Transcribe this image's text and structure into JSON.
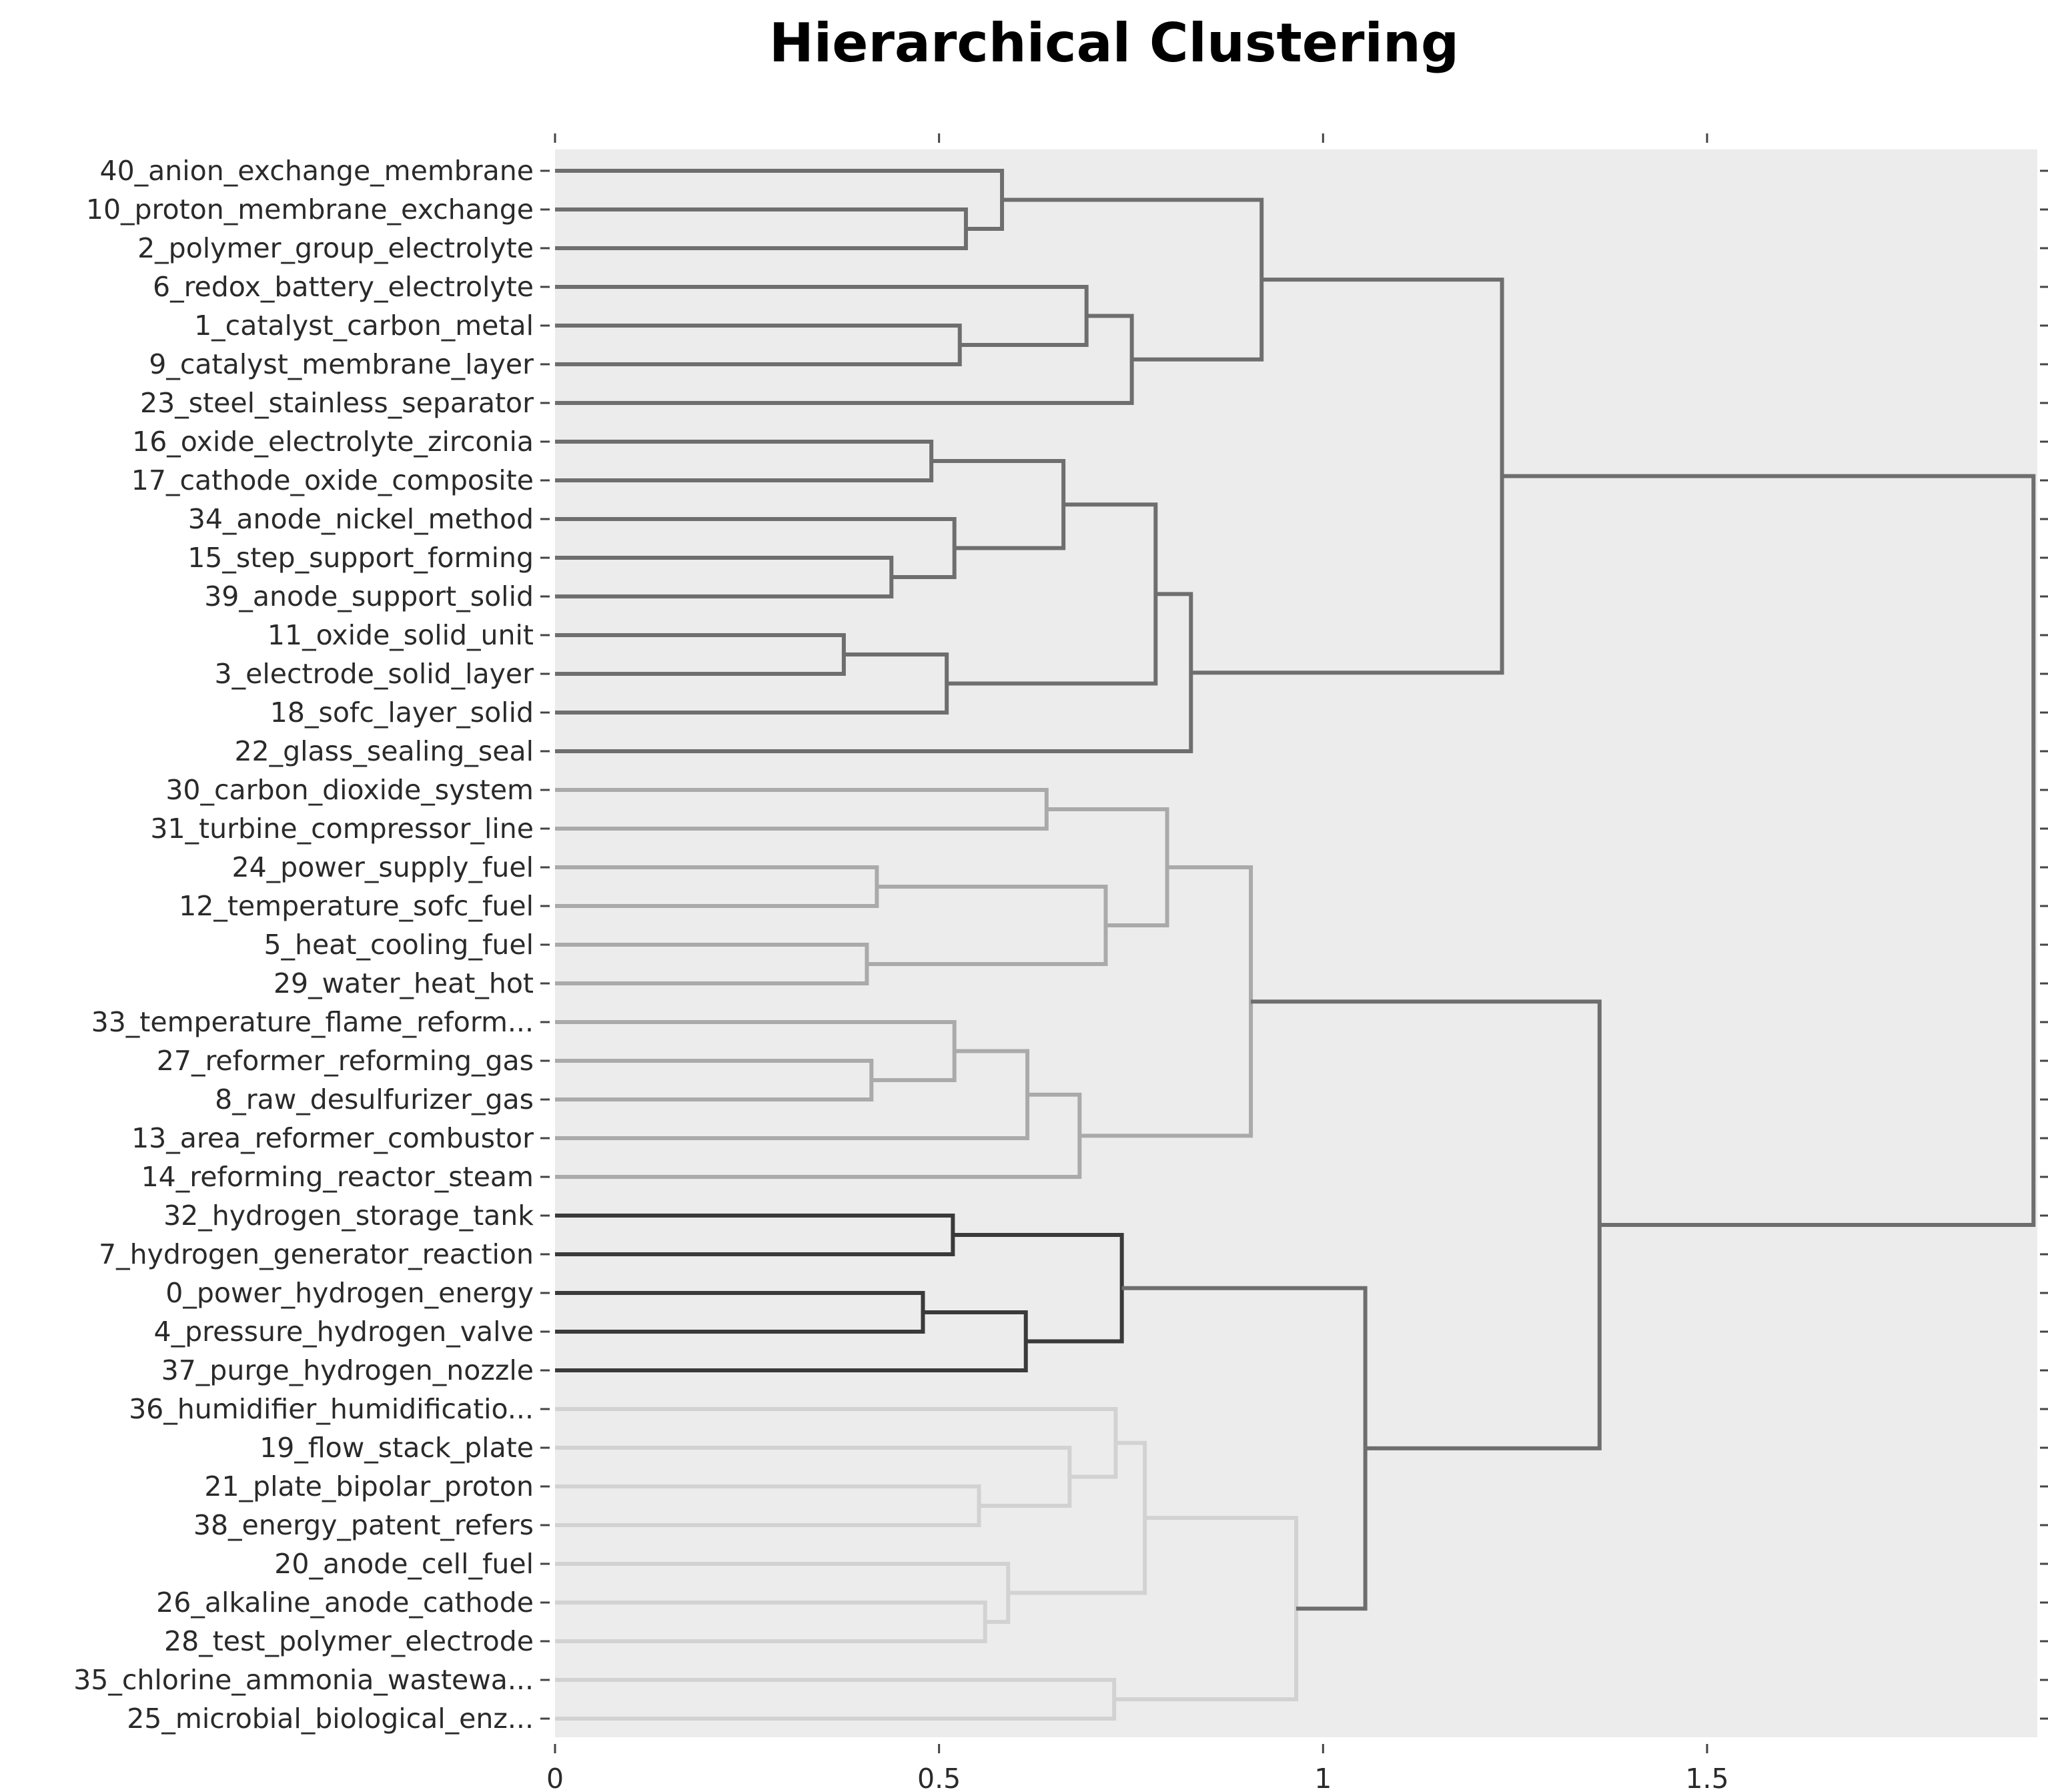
{
  "chart_data": {
    "type": "dendrogram",
    "title": "Hierarchical Clustering",
    "xlabel": "",
    "ylabel": "",
    "xlim": [
      0,
      1.93
    ],
    "x_ticks": [
      {
        "value": 0,
        "label": "0"
      },
      {
        "value": 0.5,
        "label": "0.5"
      },
      {
        "value": 1,
        "label": "1"
      },
      {
        "value": 1.5,
        "label": "1.5"
      }
    ],
    "grid": false,
    "orientation": "horizontal",
    "leaves": [
      "40_anion_exchange_membrane",
      "10_proton_membrane_exchange",
      "2_polymer_group_electrolyte",
      "6_redox_battery_electrolyte",
      "1_catalyst_carbon_metal",
      "9_catalyst_membrane_layer",
      "23_steel_stainless_separator",
      "16_oxide_electrolyte_zirconia",
      "17_cathode_oxide_composite",
      "34_anode_nickel_method",
      "15_step_support_forming",
      "39_anode_support_solid",
      "11_oxide_solid_unit",
      "3_electrode_solid_layer",
      "18_sofc_layer_solid",
      "22_glass_sealing_seal",
      "30_carbon_dioxide_system",
      "31_turbine_compressor_line",
      "24_power_supply_fuel",
      "12_temperature_sofc_fuel",
      "5_heat_cooling_fuel",
      "29_water_heat_hot",
      "33_temperature_flame_reform...",
      "27_reformer_reforming_gas",
      "8_raw_desulfurizer_gas",
      "13_area_reformer_combustor",
      "14_reforming_reactor_steam",
      "32_hydrogen_storage_tank",
      "7_hydrogen_generator_reaction",
      "0_power_hydrogen_energy",
      "4_pressure_hydrogen_valve",
      "37_purge_hydrogen_nozzle",
      "36_humidifier_humidificatio...",
      "19_flow_stack_plate",
      "21_plate_bipolar_proton",
      "38_energy_patent_refers",
      "20_anode_cell_fuel",
      "26_alkaline_anode_cathode",
      "28_test_polymer_electrode",
      "35_chlorine_ammonia_wastewa...",
      "25_microbial_biological_enz..."
    ],
    "colors": {
      "cluster_a": "#6e6e6e",
      "cluster_b": "#aaaaaa",
      "cluster_c": "#3a3a3a",
      "cluster_d": "#d2d2d2",
      "root": "#6e6e6e",
      "plot_bg": "#ececec"
    },
    "merges": [
      {
        "id": "A1",
        "children": [
          1,
          2
        ],
        "height": 0.535,
        "color": "cluster_a"
      },
      {
        "id": "A2",
        "children": [
          0,
          "A1"
        ],
        "height": 0.582,
        "color": "cluster_a"
      },
      {
        "id": "A3",
        "children": [
          4,
          5
        ],
        "height": 0.527,
        "color": "cluster_a"
      },
      {
        "id": "A4",
        "children": [
          3,
          "A3"
        ],
        "height": 0.692,
        "color": "cluster_a"
      },
      {
        "id": "A5",
        "children": [
          "A4",
          6
        ],
        "height": 0.751,
        "color": "cluster_a"
      },
      {
        "id": "A6",
        "children": [
          "A2",
          "A5"
        ],
        "height": 0.92,
        "color": "cluster_a"
      },
      {
        "id": "A7",
        "children": [
          7,
          8
        ],
        "height": 0.49,
        "color": "cluster_a"
      },
      {
        "id": "A8",
        "children": [
          10,
          11
        ],
        "height": 0.438,
        "color": "cluster_a"
      },
      {
        "id": "A9",
        "children": [
          9,
          "A8"
        ],
        "height": 0.52,
        "color": "cluster_a"
      },
      {
        "id": "A10",
        "children": [
          "A7",
          "A9"
        ],
        "height": 0.662,
        "color": "cluster_a"
      },
      {
        "id": "A11",
        "children": [
          12,
          13
        ],
        "height": 0.376,
        "color": "cluster_a"
      },
      {
        "id": "A12",
        "children": [
          "A11",
          14
        ],
        "height": 0.51,
        "color": "cluster_a"
      },
      {
        "id": "A13",
        "children": [
          "A10",
          "A12"
        ],
        "height": 0.782,
        "color": "cluster_a"
      },
      {
        "id": "A14",
        "children": [
          "A13",
          15
        ],
        "height": 0.828,
        "color": "cluster_a"
      },
      {
        "id": "A15",
        "children": [
          "A6",
          "A14"
        ],
        "height": 1.233,
        "color": "cluster_a"
      },
      {
        "id": "B1",
        "children": [
          16,
          17
        ],
        "height": 0.64,
        "color": "cluster_b"
      },
      {
        "id": "B2",
        "children": [
          18,
          19
        ],
        "height": 0.419,
        "color": "cluster_b"
      },
      {
        "id": "B3",
        "children": [
          20,
          21
        ],
        "height": 0.406,
        "color": "cluster_b"
      },
      {
        "id": "B4",
        "children": [
          "B2",
          "B3"
        ],
        "height": 0.717,
        "color": "cluster_b"
      },
      {
        "id": "B5",
        "children": [
          "B1",
          "B4"
        ],
        "height": 0.797,
        "color": "cluster_b"
      },
      {
        "id": "B6",
        "children": [
          23,
          24
        ],
        "height": 0.412,
        "color": "cluster_b"
      },
      {
        "id": "B7",
        "children": [
          22,
          "B6"
        ],
        "height": 0.52,
        "color": "cluster_b"
      },
      {
        "id": "B8",
        "children": [
          "B7",
          25
        ],
        "height": 0.615,
        "color": "cluster_b"
      },
      {
        "id": "B9",
        "children": [
          "B8",
          26
        ],
        "height": 0.683,
        "color": "cluster_b"
      },
      {
        "id": "B10",
        "children": [
          "B5",
          "B9"
        ],
        "height": 0.906,
        "color": "cluster_b"
      },
      {
        "id": "C1",
        "children": [
          27,
          28
        ],
        "height": 0.518,
        "color": "cluster_c"
      },
      {
        "id": "C2",
        "children": [
          29,
          30
        ],
        "height": 0.479,
        "color": "cluster_c"
      },
      {
        "id": "C3",
        "children": [
          "C2",
          31
        ],
        "height": 0.613,
        "color": "cluster_c"
      },
      {
        "id": "C4",
        "children": [
          "C1",
          "C3"
        ],
        "height": 0.738,
        "color": "cluster_c"
      },
      {
        "id": "D1",
        "children": [
          34,
          35
        ],
        "height": 0.552,
        "color": "cluster_d"
      },
      {
        "id": "D2",
        "children": [
          33,
          "D1"
        ],
        "height": 0.67,
        "color": "cluster_d"
      },
      {
        "id": "D3",
        "children": [
          32,
          "D2"
        ],
        "height": 0.73,
        "color": "cluster_d"
      },
      {
        "id": "D4",
        "children": [
          37,
          38
        ],
        "height": 0.56,
        "color": "cluster_d"
      },
      {
        "id": "D5",
        "children": [
          36,
          "D4"
        ],
        "height": 0.59,
        "color": "cluster_d"
      },
      {
        "id": "D6",
        "children": [
          "D3",
          "D5"
        ],
        "height": 0.768,
        "color": "cluster_d"
      },
      {
        "id": "D7",
        "children": [
          39,
          40
        ],
        "height": 0.728,
        "color": "cluster_d"
      },
      {
        "id": "D8",
        "children": [
          "D6",
          "D7"
        ],
        "height": 0.965,
        "color": "cluster_d"
      },
      {
        "id": "R1",
        "children": [
          "C4",
          "D8"
        ],
        "height": 1.055,
        "color": "root"
      },
      {
        "id": "R2",
        "children": [
          "B10",
          "R1"
        ],
        "height": 1.36,
        "color": "root"
      },
      {
        "id": "R3",
        "children": [
          "A15",
          "R2"
        ],
        "height": 1.925,
        "color": "root"
      }
    ]
  }
}
